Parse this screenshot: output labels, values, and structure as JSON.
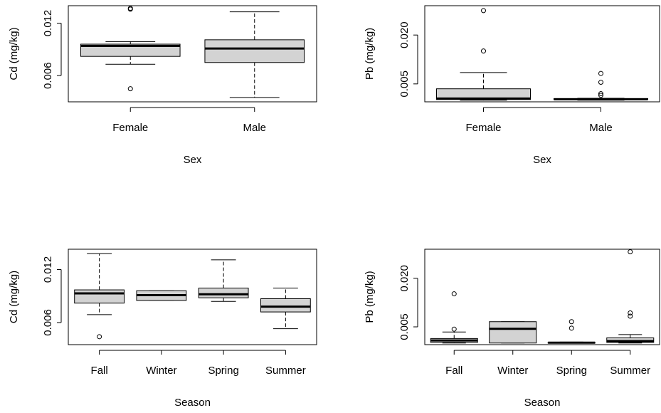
{
  "colors": {
    "box_fill": "#d3d3d3",
    "stroke": "#000000",
    "background": "#ffffff"
  },
  "chart_data": [
    {
      "type": "boxplot",
      "xlabel": "Sex",
      "ylabel": "Cd (mg/kg)",
      "yticks": [
        0.006,
        0.012
      ],
      "ytick_labels": [
        "0.006",
        "0.012"
      ],
      "categories": [
        "Female",
        "Male"
      ],
      "boxes": [
        {
          "whisker_low": 0.0073,
          "q1": 0.0082,
          "median": 0.0094,
          "q3": 0.0096,
          "whisker_high": 0.0099,
          "outliers": [
            0.0045,
            0.0136,
            0.0137
          ]
        },
        {
          "whisker_low": 0.0035,
          "q1": 0.0075,
          "median": 0.0091,
          "q3": 0.0101,
          "whisker_high": 0.0133,
          "outliers": []
        }
      ]
    },
    {
      "type": "boxplot",
      "xlabel": "Sex",
      "ylabel": "Pb (mg/kg)",
      "yticks": [
        0.005,
        0.02
      ],
      "ytick_labels": [
        "0.005",
        "0.020"
      ],
      "categories": [
        "Female",
        "Male"
      ],
      "boxes": [
        {
          "whisker_low": 0.0,
          "q1": 0.0002,
          "median": 0.0005,
          "q3": 0.0035,
          "whisker_high": 0.0085,
          "outliers": [
            0.0151,
            0.0275
          ]
        },
        {
          "whisker_low": 0.0,
          "q1": 0.0002,
          "median": 0.0003,
          "q3": 0.0005,
          "whisker_high": 0.0006,
          "outliers": [
            0.0015,
            0.002,
            0.0055,
            0.0082
          ]
        }
      ]
    },
    {
      "type": "boxplot",
      "xlabel": "Season",
      "ylabel": "Cd (mg/kg)",
      "yticks": [
        0.006,
        0.012
      ],
      "ytick_labels": [
        "0.006",
        "0.012"
      ],
      "categories": [
        "Fall",
        "Winter",
        "Spring",
        "Summer"
      ],
      "boxes": [
        {
          "whisker_low": 0.0069,
          "q1": 0.0082,
          "median": 0.0093,
          "q3": 0.0097,
          "whisker_high": 0.0138,
          "outliers": [
            0.0044
          ]
        },
        {
          "whisker_low": 0.0085,
          "q1": 0.0085,
          "median": 0.0091,
          "q3": 0.0096,
          "whisker_high": 0.0096,
          "outliers": []
        },
        {
          "whisker_low": 0.0084,
          "q1": 0.0088,
          "median": 0.0092,
          "q3": 0.0099,
          "whisker_high": 0.0131,
          "outliers": []
        },
        {
          "whisker_low": 0.0053,
          "q1": 0.0072,
          "median": 0.0078,
          "q3": 0.0087,
          "whisker_high": 0.0099,
          "outliers": []
        }
      ]
    },
    {
      "type": "boxplot",
      "xlabel": "Season",
      "ylabel": "Pb (mg/kg)",
      "yticks": [
        0.005,
        0.02
      ],
      "ytick_labels": [
        "0.005",
        "0.020"
      ],
      "categories": [
        "Fall",
        "Winter",
        "Spring",
        "Summer"
      ],
      "boxes": [
        {
          "whisker_low": 0.0,
          "q1": 0.0002,
          "median": 0.0008,
          "q3": 0.0014,
          "whisker_high": 0.0034,
          "outliers": [
            0.0043,
            0.0152
          ]
        },
        {
          "whisker_low": 0.0,
          "q1": 0.0,
          "median": 0.0044,
          "q3": 0.0066,
          "whisker_high": 0.0066,
          "outliers": []
        },
        {
          "whisker_low": 0.0,
          "q1": 0.0,
          "median": 0.0001,
          "q3": 0.0002,
          "whisker_high": 0.0003,
          "outliers": [
            0.0046,
            0.0066
          ]
        },
        {
          "whisker_low": 0.0,
          "q1": 0.0002,
          "median": 0.0006,
          "q3": 0.0016,
          "whisker_high": 0.0026,
          "outliers": [
            0.0083,
            0.0093,
            0.0282
          ]
        }
      ]
    }
  ]
}
